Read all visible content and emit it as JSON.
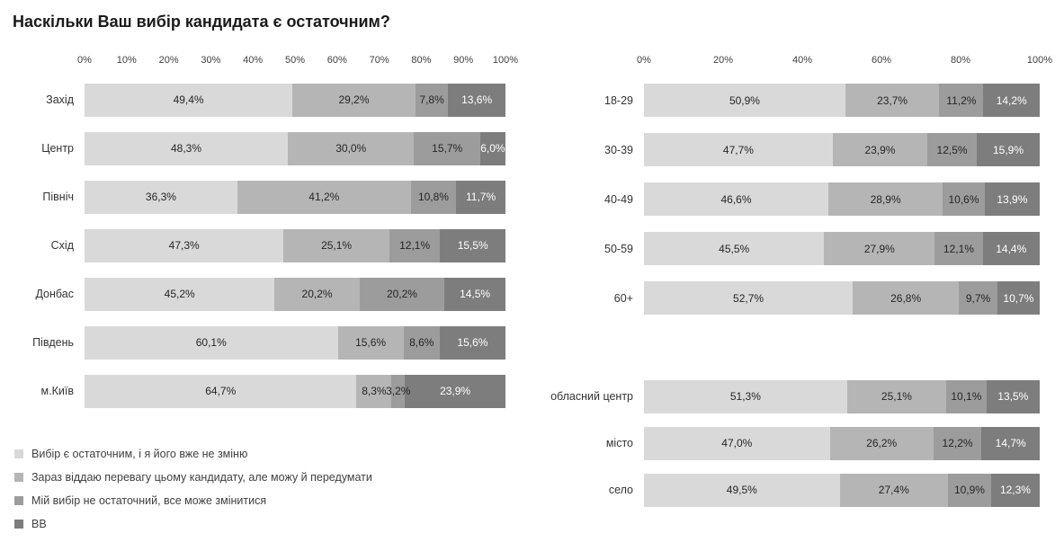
{
  "title": "Наскільки Ваш вибір кандидата є остаточним?",
  "colors": [
    "#d9d9d9",
    "#b5b5b5",
    "#9c9c9c",
    "#7d7d7d"
  ],
  "label_text_colors": [
    "#262626",
    "#262626",
    "#262626",
    "#ffffff"
  ],
  "legend": [
    "Вибір є остаточним, і я його вже не зміню",
    "Зараз віддаю перевагу цьому кандидату, але можу й передумати",
    "Мій вибір не остаточний, все може змінитися",
    "ВВ"
  ],
  "chart_data": [
    {
      "id": "regions",
      "type": "bar",
      "stacked": true,
      "orientation": "horizontal",
      "xlim": [
        0,
        100
      ],
      "axis_ticks": [
        "0%",
        "10%",
        "20%",
        "30%",
        "40%",
        "50%",
        "60%",
        "70%",
        "80%",
        "90%",
        "100%"
      ],
      "categories": [
        "Захід",
        "Центр",
        "Північ",
        "Схід",
        "Донбас",
        "Південь",
        "м.Київ"
      ],
      "series": [
        {
          "name": "Вибір є остаточним, і я його вже не зміню",
          "values": [
            49.4,
            48.3,
            36.3,
            47.3,
            45.2,
            60.1,
            64.7
          ]
        },
        {
          "name": "Зараз віддаю перевагу цьому кандидату, але можу й передумати",
          "values": [
            29.2,
            30.0,
            41.2,
            25.1,
            20.2,
            15.6,
            8.3
          ]
        },
        {
          "name": "Мій вибір не остаточний, все може змінитися",
          "values": [
            7.8,
            15.7,
            10.8,
            12.1,
            20.2,
            8.6,
            3.2
          ]
        },
        {
          "name": "ВВ",
          "values": [
            13.6,
            6.0,
            11.7,
            15.5,
            14.5,
            15.6,
            23.9
          ]
        }
      ]
    },
    {
      "id": "age",
      "type": "bar",
      "stacked": true,
      "orientation": "horizontal",
      "xlim": [
        0,
        100
      ],
      "axis_ticks": [
        "0%",
        "20%",
        "40%",
        "60%",
        "80%",
        "100%"
      ],
      "categories": [
        "18-29",
        "30-39",
        "40-49",
        "50-59",
        "60+"
      ],
      "series": [
        {
          "name": "Вибір є остаточним, і я його вже не зміню",
          "values": [
            50.9,
            47.7,
            46.6,
            45.5,
            52.7
          ]
        },
        {
          "name": "Зараз віддаю перевагу цьому кандидату, але можу й передумати",
          "values": [
            23.7,
            23.9,
            28.9,
            27.9,
            26.8
          ]
        },
        {
          "name": "Мій вибір не остаточний, все може змінитися",
          "values": [
            11.2,
            12.5,
            10.6,
            12.1,
            9.7
          ]
        },
        {
          "name": "ВВ",
          "values": [
            14.2,
            15.9,
            13.9,
            14.4,
            10.7
          ]
        }
      ]
    },
    {
      "id": "settlement",
      "type": "bar",
      "stacked": true,
      "orientation": "horizontal",
      "xlim": [
        0,
        100
      ],
      "axis_ticks": [],
      "categories": [
        "обласний центр",
        "місто",
        "село"
      ],
      "series": [
        {
          "name": "Вибір є остаточним, і я його вже не зміню",
          "values": [
            51.3,
            47.0,
            49.5
          ]
        },
        {
          "name": "Зараз віддаю перевагу цьому кандидату, але можу й передумати",
          "values": [
            25.1,
            26.2,
            27.4
          ]
        },
        {
          "name": "Мій вибір не остаточний, все може змінитися",
          "values": [
            10.1,
            12.2,
            10.9
          ]
        },
        {
          "name": "ВВ",
          "values": [
            13.5,
            14.7,
            12.3
          ]
        }
      ]
    }
  ]
}
